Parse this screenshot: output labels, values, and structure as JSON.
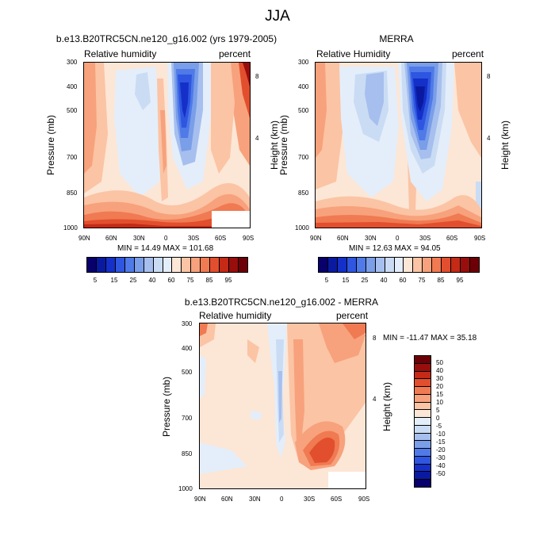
{
  "figure": {
    "title": "JJA"
  },
  "colors": {
    "rh_levels": [
      "#08006b",
      "#0a1aa0",
      "#1430c8",
      "#2f56e0",
      "#4f7ae8",
      "#7a9ee8",
      "#a6bfee",
      "#cadcf4",
      "#e4eefa",
      "#fce6d6",
      "#fbc4a4",
      "#f7a27c",
      "#f07a52",
      "#e24f2e",
      "#c42a16",
      "#980e0c",
      "#6c0006"
    ],
    "diff_levels": [
      "#08006b",
      "#0a1aa0",
      "#1430c8",
      "#2f56e0",
      "#4f7ae8",
      "#7a9ee8",
      "#a6bfee",
      "#cadcf4",
      "#e4eefa",
      "#fce6d6",
      "#fbc4a4",
      "#f7a27c",
      "#f07a52",
      "#e24f2e",
      "#c42a16",
      "#980e0c",
      "#6c0006"
    ]
  },
  "chart_data": [
    {
      "type": "heatmap",
      "title": "b.e13.B20TRC5CN.ne120_g16.002 (yrs 1979-2005)",
      "left_string": "Relative humidity",
      "right_string": "percent",
      "ylabel": "Pressure (mb)",
      "ylabel_right": "Height (km)",
      "x_ticks": [
        "90N",
        "60N",
        "30N",
        "0",
        "30S",
        "60S",
        "90S"
      ],
      "y_ticks": [
        "300",
        "400",
        "500",
        "700",
        "850",
        "1000"
      ],
      "y_ticks_right": [
        "8",
        "4"
      ],
      "ylim": [
        1000,
        300
      ],
      "stats": "MIN =  14.49  MAX = 101.68",
      "min": 14.49,
      "max": 101.68,
      "colorbar_labels": [
        "5",
        "15",
        "25",
        "40",
        "60",
        "75",
        "85",
        "95"
      ]
    },
    {
      "type": "heatmap",
      "title": "MERRA",
      "left_string": "Relative Humidity",
      "right_string": "percent",
      "ylabel": "Pressure (mb)",
      "ylabel_right": "Height (km)",
      "x_ticks": [
        "90N",
        "60N",
        "30N",
        "0",
        "30S",
        "60S",
        "90S"
      ],
      "y_ticks": [
        "300",
        "400",
        "500",
        "700",
        "850",
        "1000"
      ],
      "y_ticks_right": [
        "8",
        "4"
      ],
      "ylim": [
        1000,
        300
      ],
      "stats": "MIN =  12.63  MAX =  94.05",
      "min": 12.63,
      "max": 94.05,
      "colorbar_labels": [
        "5",
        "15",
        "25",
        "40",
        "60",
        "75",
        "85",
        "95"
      ]
    },
    {
      "type": "heatmap",
      "title": "b.e13.B20TRC5CN.ne120_g16.002 - MERRA",
      "left_string": "Relative humidity",
      "right_string": "percent",
      "ylabel": "Pressure (mb)",
      "ylabel_right": "Height (km)",
      "x_ticks": [
        "90N",
        "60N",
        "30N",
        "0",
        "30S",
        "60S",
        "90S"
      ],
      "y_ticks": [
        "300",
        "400",
        "500",
        "700",
        "850",
        "1000"
      ],
      "y_ticks_right": [
        "8",
        "4"
      ],
      "ylim": [
        1000,
        300
      ],
      "stats": "MIN = -11.47  MAX =  35.18",
      "min": -11.47,
      "max": 35.18,
      "colorbar_labels": [
        "50",
        "40",
        "30",
        "20",
        "15",
        "10",
        "5",
        "0",
        "-5",
        "-10",
        "-15",
        "-20",
        "-30",
        "-40",
        "-50"
      ]
    }
  ]
}
